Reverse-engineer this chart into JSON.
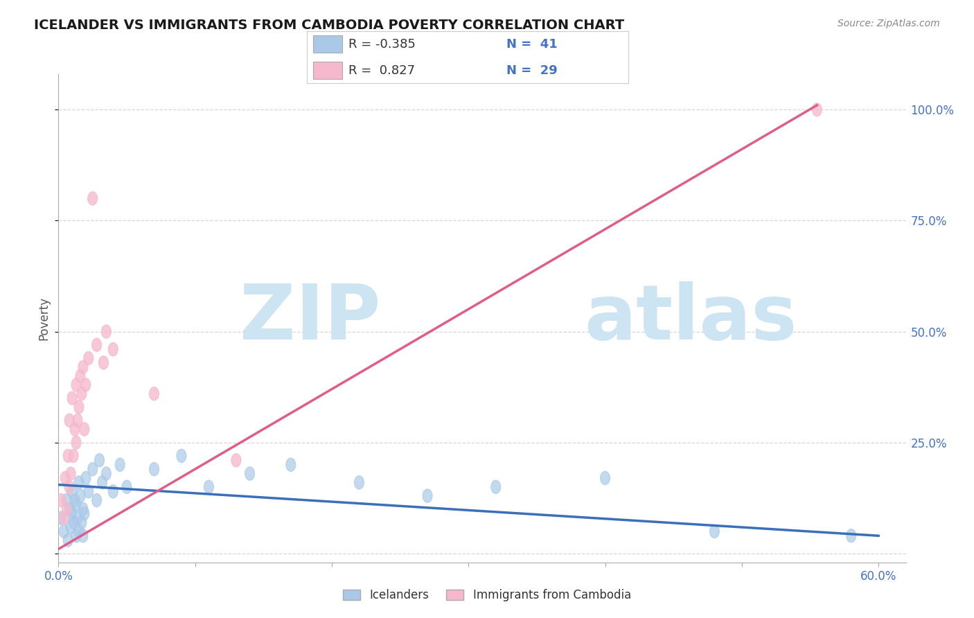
{
  "title": "ICELANDER VS IMMIGRANTS FROM CAMBODIA POVERTY CORRELATION CHART",
  "source": "Source: ZipAtlas.com",
  "ylabel": "Poverty",
  "xlim": [
    0.0,
    0.62
  ],
  "ylim": [
    -0.02,
    1.08
  ],
  "yticks": [
    0.0,
    0.25,
    0.5,
    0.75,
    1.0
  ],
  "ytick_labels": [
    "",
    "25.0%",
    "50.0%",
    "75.0%",
    "100.0%"
  ],
  "background_color": "#ffffff",
  "grid_color": "#cccccc",
  "blue_color": "#aac9e8",
  "pink_color": "#f5b8cc",
  "blue_line_color": "#3b6fba",
  "pink_line_color": "#e05c8a",
  "R_blue": -0.385,
  "N_blue": 41,
  "R_pink": 0.827,
  "N_pink": 29,
  "blue_line_x0": 0.0,
  "blue_line_y0": 0.155,
  "blue_line_x1": 0.6,
  "blue_line_y1": 0.04,
  "pink_line_x0": 0.0,
  "pink_line_y0": 0.01,
  "pink_line_x1": 0.555,
  "pink_line_y1": 1.01,
  "icelander_x": [
    0.002,
    0.004,
    0.006,
    0.007,
    0.008,
    0.009,
    0.01,
    0.01,
    0.011,
    0.012,
    0.013,
    0.013,
    0.014,
    0.015,
    0.015,
    0.016,
    0.017,
    0.018,
    0.018,
    0.019,
    0.02,
    0.022,
    0.025,
    0.028,
    0.03,
    0.032,
    0.035,
    0.04,
    0.045,
    0.05,
    0.07,
    0.09,
    0.11,
    0.14,
    0.17,
    0.22,
    0.27,
    0.32,
    0.4,
    0.48,
    0.58
  ],
  "icelander_y": [
    0.08,
    0.05,
    0.12,
    0.03,
    0.1,
    0.06,
    0.14,
    0.09,
    0.07,
    0.12,
    0.04,
    0.11,
    0.08,
    0.16,
    0.05,
    0.13,
    0.07,
    0.1,
    0.04,
    0.09,
    0.17,
    0.14,
    0.19,
    0.12,
    0.21,
    0.16,
    0.18,
    0.14,
    0.2,
    0.15,
    0.19,
    0.22,
    0.15,
    0.18,
    0.2,
    0.16,
    0.13,
    0.15,
    0.17,
    0.05,
    0.04
  ],
  "cambodia_x": [
    0.002,
    0.004,
    0.005,
    0.006,
    0.007,
    0.008,
    0.008,
    0.009,
    0.01,
    0.011,
    0.012,
    0.013,
    0.013,
    0.014,
    0.015,
    0.016,
    0.017,
    0.018,
    0.019,
    0.02,
    0.022,
    0.025,
    0.028,
    0.033,
    0.035,
    0.04,
    0.07,
    0.13,
    0.555
  ],
  "cambodia_y": [
    0.12,
    0.08,
    0.17,
    0.1,
    0.22,
    0.15,
    0.3,
    0.18,
    0.35,
    0.22,
    0.28,
    0.25,
    0.38,
    0.3,
    0.33,
    0.4,
    0.36,
    0.42,
    0.28,
    0.38,
    0.44,
    0.8,
    0.47,
    0.43,
    0.5,
    0.46,
    0.36,
    0.21,
    1.0
  ]
}
